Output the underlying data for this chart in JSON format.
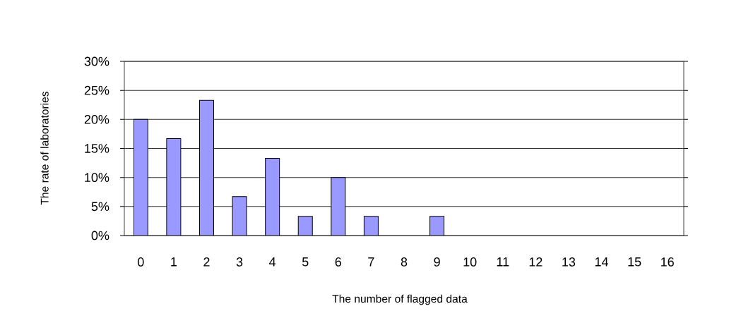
{
  "chart_data": {
    "type": "bar",
    "categories": [
      "0",
      "1",
      "2",
      "3",
      "4",
      "5",
      "6",
      "7",
      "8",
      "9",
      "10",
      "11",
      "12",
      "13",
      "14",
      "15",
      "16"
    ],
    "values": [
      20,
      16.7,
      23.3,
      6.7,
      13.3,
      3.3,
      10,
      3.3,
      0,
      3.3,
      0,
      0,
      0,
      0,
      0,
      0,
      0
    ],
    "color": "#9999ff",
    "xlabel": "The number of flagged data",
    "ylabel": "The rate of laboratories",
    "ylim": [
      0,
      30
    ],
    "yticks": [
      {
        "value": 0,
        "label": "0%"
      },
      {
        "value": 5,
        "label": "5%"
      },
      {
        "value": 10,
        "label": "10%"
      },
      {
        "value": 15,
        "label": "15%"
      },
      {
        "value": 20,
        "label": "20%"
      },
      {
        "value": 25,
        "label": "25%"
      },
      {
        "value": 30,
        "label": "30%"
      }
    ],
    "grid": "y"
  }
}
